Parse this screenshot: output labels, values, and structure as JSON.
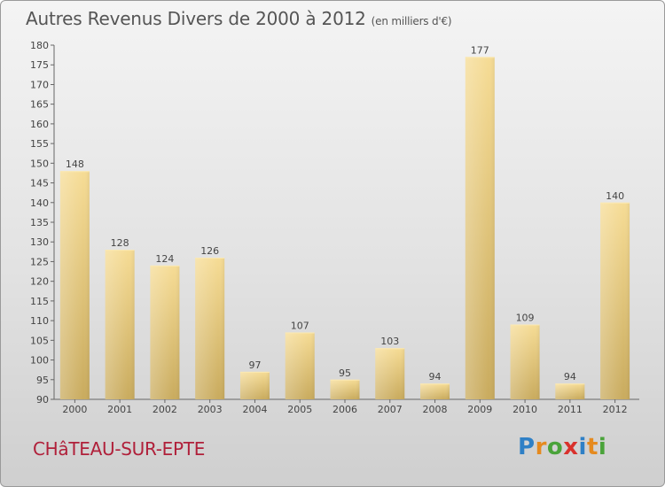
{
  "title": "Autres Revenus Divers de 2000 à 2012",
  "subtitle": "(en milliers d'€)",
  "town": "CHâTEAU-SUR-EPTE",
  "logo": {
    "text": "Proxiti",
    "letters": [
      {
        "ch": "P",
        "color": "#2f80c6"
      },
      {
        "ch": "r",
        "color": "#e58a1f"
      },
      {
        "ch": "o",
        "color": "#4aa33a"
      },
      {
        "ch": "x",
        "color": "#d9312c"
      },
      {
        "ch": "i",
        "color": "#2f80c6"
      },
      {
        "ch": "t",
        "color": "#e58a1f"
      },
      {
        "ch": "i",
        "color": "#4aa33a"
      }
    ]
  },
  "chart_data": {
    "type": "bar",
    "title": "Autres Revenus Divers de 2000 à 2012",
    "subtitle": "(en milliers d'€)",
    "categories": [
      "2000",
      "2001",
      "2002",
      "2003",
      "2004",
      "2005",
      "2006",
      "2007",
      "2008",
      "2009",
      "2010",
      "2011",
      "2012"
    ],
    "values": [
      148,
      128,
      124,
      126,
      97,
      107,
      95,
      103,
      94,
      177,
      109,
      94,
      140
    ],
    "ylim": [
      90,
      180
    ],
    "yticks": [
      90,
      95,
      100,
      105,
      110,
      115,
      120,
      125,
      130,
      135,
      140,
      145,
      150,
      155,
      160,
      165,
      170,
      175,
      180
    ],
    "grid": false,
    "bar_color": "#e8c97a"
  }
}
